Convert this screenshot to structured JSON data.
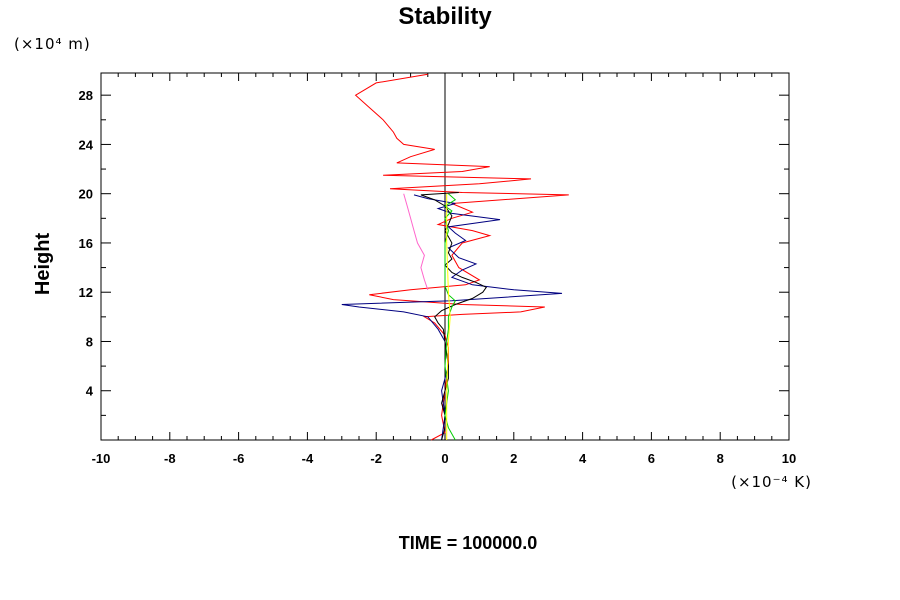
{
  "chart_data": {
    "type": "line",
    "title": "Stability",
    "ylabel": "Height",
    "xlabel": "",
    "x_unit": "(×10⁻⁴ K)",
    "y_unit": "(×10⁴ m)",
    "xlim": [
      -10,
      10
    ],
    "ylim": [
      0,
      29.8
    ],
    "x_ticks": [
      -10,
      -8,
      -6,
      -4,
      -2,
      0,
      2,
      4,
      6,
      8,
      10
    ],
    "y_ticks": [
      4,
      8,
      12,
      16,
      20,
      24,
      28
    ],
    "grid": false,
    "legend": "none",
    "footer": "TIME = 100000.0",
    "series": [
      {
        "color": "#ff0000",
        "points": [
          [
            -0.4,
            0
          ],
          [
            0,
            0.6
          ],
          [
            -0.1,
            2
          ],
          [
            0,
            4
          ],
          [
            0.1,
            6
          ],
          [
            0.1,
            7.5
          ],
          [
            0,
            8.5
          ],
          [
            -0.3,
            9.5
          ],
          [
            -0.6,
            10
          ],
          [
            0.5,
            10.2
          ],
          [
            2.2,
            10.4
          ],
          [
            2.9,
            10.8
          ],
          [
            0.5,
            11
          ],
          [
            -1.5,
            11.4
          ],
          [
            -2.2,
            11.8
          ],
          [
            -1,
            12.2
          ],
          [
            0.6,
            12.6
          ],
          [
            1,
            13
          ],
          [
            0.4,
            14
          ],
          [
            0.2,
            15
          ],
          [
            0.5,
            16
          ],
          [
            1.3,
            16.6
          ],
          [
            0.8,
            17
          ],
          [
            -0.2,
            17.5
          ],
          [
            0.2,
            18
          ],
          [
            0.8,
            18.5
          ],
          [
            0.2,
            19.2
          ],
          [
            3.6,
            19.9
          ],
          [
            0.5,
            20.1
          ],
          [
            -1.6,
            20.4
          ],
          [
            1,
            20.8
          ],
          [
            2.5,
            21.2
          ],
          [
            -1.8,
            21.5
          ],
          [
            0.5,
            21.8
          ],
          [
            1.3,
            22.2
          ],
          [
            -1.4,
            22.5
          ],
          [
            -1.0,
            23
          ],
          [
            -0.3,
            23.6
          ],
          [
            -1.2,
            24
          ],
          [
            -1.4,
            24.5
          ],
          [
            -1.5,
            25
          ],
          [
            -1.8,
            26
          ],
          [
            -2.2,
            27
          ],
          [
            -2.6,
            28
          ],
          [
            -2.0,
            29
          ],
          [
            -0.5,
            29.7
          ]
        ]
      },
      {
        "color": "#000080",
        "points": [
          [
            -0.1,
            0
          ],
          [
            0,
            2
          ],
          [
            -0.1,
            4
          ],
          [
            0.1,
            6
          ],
          [
            0,
            8
          ],
          [
            -0.2,
            9
          ],
          [
            -0.5,
            10
          ],
          [
            -1.2,
            10.4
          ],
          [
            -2.5,
            10.8
          ],
          [
            -3,
            11
          ],
          [
            0.2,
            11.3
          ],
          [
            1.8,
            11.6
          ],
          [
            3.4,
            11.9
          ],
          [
            2.0,
            12.2
          ],
          [
            0.8,
            12.6
          ],
          [
            0.2,
            13.2
          ],
          [
            0.5,
            13.8
          ],
          [
            0.9,
            14.3
          ],
          [
            0.4,
            14.8
          ],
          [
            0.1,
            15.6
          ],
          [
            0.6,
            16.2
          ],
          [
            0.3,
            16.8
          ],
          [
            0.1,
            17.3
          ],
          [
            1.6,
            17.9
          ],
          [
            0.2,
            18.4
          ],
          [
            -0.2,
            18.8
          ],
          [
            0.3,
            19.2
          ],
          [
            -0.5,
            19.6
          ],
          [
            -0.9,
            19.9
          ]
        ]
      },
      {
        "color": "#000000",
        "points": [
          [
            -0.1,
            0
          ],
          [
            0,
            1
          ],
          [
            0,
            2
          ],
          [
            -0.1,
            3
          ],
          [
            0,
            4
          ],
          [
            0.1,
            5
          ],
          [
            0.1,
            6
          ],
          [
            0.05,
            7
          ],
          [
            0,
            8
          ],
          [
            -0.05,
            9
          ],
          [
            -0.2,
            9.5
          ],
          [
            -0.3,
            10
          ],
          [
            -0.1,
            10.5
          ],
          [
            0.3,
            11
          ],
          [
            0.8,
            11.5
          ],
          [
            1.1,
            12
          ],
          [
            1.2,
            12.4
          ],
          [
            0.9,
            12.8
          ],
          [
            0.5,
            13.2
          ],
          [
            0.2,
            13.6
          ],
          [
            0.0,
            14.2
          ],
          [
            0.2,
            14.7
          ],
          [
            0.1,
            15.2
          ],
          [
            0.2,
            16
          ],
          [
            0.0,
            17
          ],
          [
            0.1,
            17.5
          ],
          [
            0.2,
            18.2
          ],
          [
            0.0,
            19
          ],
          [
            -0.3,
            19.5
          ],
          [
            -0.7,
            19.9
          ],
          [
            0.4,
            20.1
          ]
        ]
      },
      {
        "color": "#ff66cc",
        "points": [
          [
            -0.5,
            12.2
          ],
          [
            -0.6,
            13
          ],
          [
            -0.7,
            14
          ],
          [
            -0.6,
            15
          ],
          [
            -0.8,
            16
          ],
          [
            -0.9,
            17
          ],
          [
            -1.0,
            18
          ],
          [
            -1.1,
            19
          ],
          [
            -1.2,
            20
          ]
        ]
      },
      {
        "color": "#00cc00",
        "points": [
          [
            0.3,
            0
          ],
          [
            0.1,
            1
          ],
          [
            0,
            2
          ],
          [
            0.1,
            4
          ],
          [
            0,
            6
          ],
          [
            0.05,
            8
          ],
          [
            0.1,
            9
          ],
          [
            0.1,
            10
          ],
          [
            0.2,
            10.8
          ],
          [
            0.3,
            11.3
          ],
          [
            0.1,
            11.8
          ],
          [
            0,
            12.5
          ],
          [
            0,
            14
          ],
          [
            0,
            16
          ],
          [
            0.1,
            17
          ],
          [
            0,
            18
          ],
          [
            0.2,
            18.6
          ],
          [
            0,
            19
          ],
          [
            0.3,
            19.5
          ],
          [
            0.1,
            20
          ]
        ]
      },
      {
        "color": "#ffff00",
        "points": [
          [
            0.05,
            0
          ],
          [
            0.05,
            4
          ],
          [
            0.1,
            8
          ],
          [
            0.15,
            10
          ],
          [
            0.1,
            12
          ],
          [
            0.05,
            16
          ],
          [
            0.05,
            20
          ]
        ]
      }
    ]
  }
}
